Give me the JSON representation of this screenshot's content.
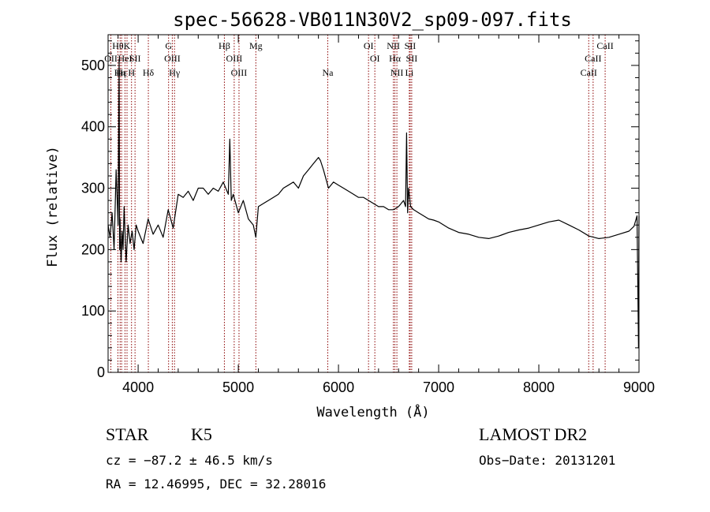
{
  "chart_data": {
    "type": "line",
    "title": "spec-56628-VB011N30V2_sp09-097.fits",
    "xlabel": "Wavelength (Å)",
    "ylabel": "Flux (relative)",
    "xlim": [
      3700,
      9000
    ],
    "ylim": [
      0,
      550
    ],
    "x_ticks": [
      4000,
      5000,
      6000,
      7000,
      8000,
      9000
    ],
    "y_ticks": [
      0,
      100,
      200,
      300,
      400,
      500
    ],
    "x_tick_labels": [
      "4000",
      "5000",
      "6000",
      "7000",
      "8000",
      "9000"
    ],
    "y_tick_labels": [
      "0",
      "100",
      "200",
      "300",
      "400",
      "500"
    ],
    "series": [
      {
        "color": "#000000",
        "x": [
          3700,
          3720,
          3740,
          3760,
          3780,
          3800,
          3810,
          3815,
          3820,
          3830,
          3840,
          3850,
          3860,
          3880,
          3900,
          3920,
          3940,
          3960,
          3980,
          4000,
          4050,
          4100,
          4150,
          4200,
          4250,
          4300,
          4350,
          4400,
          4450,
          4500,
          4550,
          4600,
          4650,
          4700,
          4750,
          4800,
          4850,
          4900,
          4915,
          4930,
          4950,
          5000,
          5050,
          5100,
          5150,
          5175,
          5200,
          5250,
          5300,
          5350,
          5400,
          5450,
          5500,
          5550,
          5600,
          5650,
          5700,
          5750,
          5800,
          5820,
          5850,
          5900,
          5950,
          6000,
          6050,
          6100,
          6150,
          6200,
          6250,
          6300,
          6350,
          6400,
          6450,
          6500,
          6550,
          6600,
          6650,
          6670,
          6680,
          6690,
          6700,
          6720,
          6750,
          6800,
          6850,
          6900,
          6950,
          7000,
          7100,
          7200,
          7300,
          7400,
          7500,
          7600,
          7700,
          7800,
          7900,
          8000,
          8100,
          8200,
          8300,
          8400,
          8500,
          8600,
          8700,
          8800,
          8900,
          8950,
          8980,
          8995,
          9000
        ],
        "y": [
          240,
          220,
          260,
          200,
          330,
          240,
          510,
          200,
          250,
          180,
          230,
          200,
          270,
          180,
          240,
          210,
          230,
          200,
          240,
          230,
          210,
          250,
          225,
          240,
          220,
          265,
          235,
          290,
          285,
          295,
          280,
          300,
          300,
          290,
          300,
          295,
          310,
          290,
          380,
          280,
          290,
          260,
          280,
          250,
          240,
          220,
          270,
          275,
          280,
          285,
          290,
          300,
          305,
          310,
          300,
          320,
          330,
          340,
          350,
          345,
          330,
          300,
          310,
          305,
          300,
          295,
          290,
          285,
          285,
          280,
          275,
          270,
          270,
          265,
          265,
          270,
          280,
          270,
          390,
          260,
          300,
          270,
          265,
          260,
          255,
          250,
          248,
          245,
          235,
          228,
          225,
          220,
          218,
          222,
          228,
          232,
          235,
          240,
          245,
          248,
          240,
          232,
          222,
          218,
          220,
          225,
          230,
          238,
          255,
          40,
          255
        ]
      }
    ],
    "line_labels": [
      {
        "x": 3728,
        "text": "OII",
        "row": 2
      },
      {
        "x": 3798,
        "text": "Hθ",
        "row": 1
      },
      {
        "x": 3820,
        "text": "Hη",
        "row": 3
      },
      {
        "x": 3835,
        "text": "Hε",
        "row": 3
      },
      {
        "x": 3869,
        "text": "HeI",
        "row": 2
      },
      {
        "x": 3889,
        "text": "K",
        "row": 1
      },
      {
        "x": 3934,
        "text": "H",
        "row": 3
      },
      {
        "x": 3969,
        "text": "SII",
        "row": 2
      },
      {
        "x": 4102,
        "text": "Hδ",
        "row": 3
      },
      {
        "x": 4304,
        "text": "G",
        "row": 1
      },
      {
        "x": 4341,
        "text": "OIII",
        "row": 2
      },
      {
        "x": 4363,
        "text": "Hγ",
        "row": 3
      },
      {
        "x": 4861,
        "text": "Hβ",
        "row": 1
      },
      {
        "x": 4959,
        "text": "OIII",
        "row": 2
      },
      {
        "x": 5007,
        "text": "OIII",
        "row": 3
      },
      {
        "x": 5175,
        "text": "Mg",
        "row": 1
      },
      {
        "x": 5893,
        "text": "Na",
        "row": 3
      },
      {
        "x": 6300,
        "text": "OI",
        "row": 1
      },
      {
        "x": 6363,
        "text": "OI",
        "row": 2
      },
      {
        "x": 6548,
        "text": "NII",
        "row": 1
      },
      {
        "x": 6563,
        "text": "Hα",
        "row": 2
      },
      {
        "x": 6583,
        "text": "NII",
        "row": 3
      },
      {
        "x": 6707,
        "text": "Li",
        "row": 3
      },
      {
        "x": 6716,
        "text": "SII",
        "row": 1
      },
      {
        "x": 6731,
        "text": "SII",
        "row": 2
      },
      {
        "x": 8498,
        "text": "CaII",
        "row": 3
      },
      {
        "x": 8542,
        "text": "CaII",
        "row": 2
      },
      {
        "x": 8662,
        "text": "CaII",
        "row": 1
      }
    ]
  },
  "info": {
    "class": "STAR",
    "subclass": "K5",
    "survey": "LAMOST DR2",
    "cz": "cz = −87.2 ± 46.5 km/s",
    "obs_date": "Obs−Date: 20131201",
    "radec": "RA =  12.46995, DEC =  32.28016"
  },
  "colors": {
    "spectrum": "#000000",
    "line_markers": "#8b0000",
    "axes": "#000000",
    "background": "#ffffff"
  }
}
